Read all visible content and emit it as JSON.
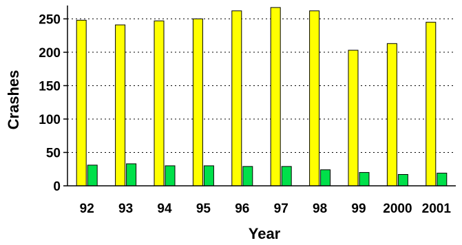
{
  "chart_data": {
    "type": "bar",
    "title": "",
    "xlabel": "Year",
    "ylabel": "Crashes",
    "categories": [
      "92",
      "93",
      "94",
      "95",
      "96",
      "97",
      "98",
      "99",
      "2000",
      "2001"
    ],
    "series": [
      {
        "values": [
          248,
          241,
          247,
          250,
          262,
          267,
          262,
          203,
          213,
          245
        ],
        "color": "#ffff00"
      },
      {
        "values": [
          31,
          33,
          30,
          30,
          29,
          29,
          24,
          20,
          17,
          19
        ],
        "color": "#00e04a"
      }
    ],
    "ylim": [
      0,
      270
    ],
    "yticks": [
      "0",
      "50",
      "100",
      "150",
      "200",
      "250"
    ],
    "grid": "horizontal dotted",
    "legend": "none"
  }
}
